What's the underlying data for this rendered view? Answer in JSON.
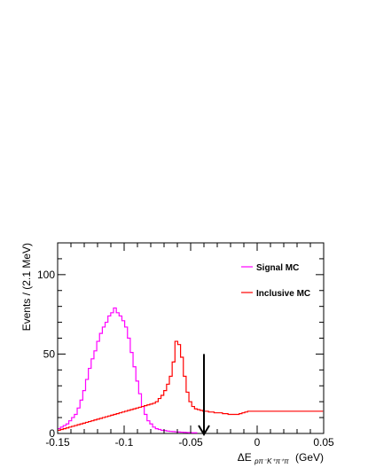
{
  "chart_data": {
    "type": "line",
    "ylabel": "Events / (2.1 MeV)",
    "xlabel_prefix": "ΔE",
    "xlabel_subscript": "pπ⁻K⁺π⁺π",
    "xlabel_unit": "(GeV)",
    "xlim": [
      -0.15,
      0.05
    ],
    "ylim": [
      0,
      120
    ],
    "x_ticks": [
      -0.15,
      -0.1,
      -0.05,
      0,
      0.05
    ],
    "x_tick_labels": [
      "-0.15",
      "-0.1",
      "-0.05",
      "0",
      "0.05"
    ],
    "y_ticks": [
      0,
      50,
      100
    ],
    "y_tick_labels": [
      "0",
      "50",
      "100"
    ],
    "bin_start": -0.15,
    "bin_width": 0.0021,
    "legend_position": "top-right",
    "series": [
      {
        "name": "Signal MC",
        "color": "#ff00ff",
        "values": [
          3,
          4,
          5,
          6,
          8,
          10,
          12,
          16,
          21,
          27,
          34,
          41,
          47,
          52,
          58,
          63,
          67,
          70,
          74,
          76,
          79,
          76,
          74,
          71,
          67,
          60,
          51,
          42,
          33,
          25,
          17,
          12,
          8,
          6,
          4,
          3,
          2.5,
          2,
          1.8,
          1.5,
          1.3,
          1.2,
          1.0,
          0.9,
          0.8,
          0.7,
          0.6,
          0.5,
          0.4,
          0.4
        ]
      },
      {
        "name": "Inclusive MC",
        "color": "#ff0000",
        "values": [
          2,
          2.5,
          3,
          3.5,
          4,
          4.5,
          5,
          5.5,
          6,
          6.5,
          7,
          7.5,
          8,
          8.5,
          9,
          9.5,
          10,
          10.5,
          11,
          11.5,
          12,
          12.5,
          13,
          13.5,
          14,
          14.5,
          15,
          15.5,
          16,
          16.5,
          17,
          17.5,
          18,
          18.5,
          19,
          20,
          22,
          24,
          27,
          31,
          36,
          45,
          58,
          56,
          48,
          36,
          26,
          20,
          17,
          15.5,
          15,
          14.5,
          14,
          14,
          13.5,
          13.5,
          13,
          13,
          13,
          12.5,
          12.5,
          12,
          12,
          12,
          12,
          12.5,
          13,
          13.5,
          14,
          14,
          14,
          14,
          14,
          14,
          14,
          14,
          14,
          14,
          14,
          14,
          14,
          14,
          14,
          14,
          14,
          14,
          14,
          14,
          14,
          14,
          14,
          14,
          14,
          14,
          14
        ]
      }
    ],
    "cut_arrow_x": -0.04,
    "cut_arrow_top": 50
  }
}
